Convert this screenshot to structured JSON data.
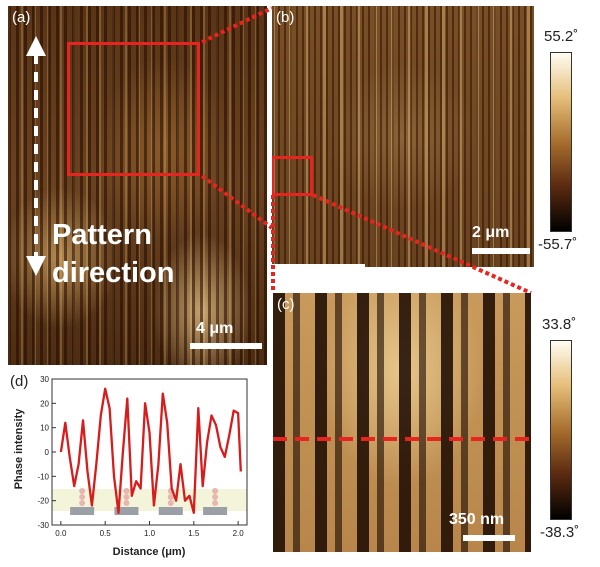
{
  "panels": {
    "a": {
      "label": "(a)",
      "annotation_line1": "Pattern",
      "annotation_line2": "direction",
      "scale_bar": "4 μm"
    },
    "b": {
      "label": "(b)",
      "scale_bar": "2 μm",
      "colorbar_max": "55.2˚",
      "colorbar_min": "-55.7˚"
    },
    "c": {
      "label": "(c)",
      "scale_bar": "350 nm",
      "colorbar_max": "33.8˚",
      "colorbar_min": "-38.3˚"
    },
    "d": {
      "label": "(d)"
    }
  },
  "colors": {
    "highlight": "#e8241f",
    "profile_line": "#d81c1c"
  },
  "chart_data": {
    "type": "line",
    "xlabel": "Distance (μm)",
    "ylabel": "Phase intensity",
    "xlim": [
      -0.1,
      2.1
    ],
    "ylim": [
      -30,
      30
    ],
    "x_ticks": [
      "0.0",
      "0.5",
      "1.0",
      "1.5",
      "2.0"
    ],
    "y_ticks": [
      "30",
      "20",
      "10",
      "0",
      "-10",
      "-20",
      "-30"
    ],
    "series": [
      {
        "x": [
          0.0,
          0.05,
          0.1,
          0.15,
          0.2,
          0.25,
          0.3,
          0.35,
          0.4,
          0.45,
          0.5,
          0.55,
          0.6,
          0.65,
          0.7,
          0.75,
          0.8,
          0.85,
          0.9,
          0.95,
          1.0,
          1.05,
          1.1,
          1.15,
          1.2,
          1.25,
          1.3,
          1.35,
          1.4,
          1.45,
          1.5,
          1.55,
          1.6,
          1.65,
          1.7,
          1.75,
          1.8,
          1.85,
          1.9,
          1.95,
          2.0,
          2.03
        ],
        "y": [
          0,
          12,
          -2,
          -14,
          -5,
          13,
          -8,
          -22,
          -5,
          15,
          26,
          18,
          -10,
          -25,
          0,
          22,
          -18,
          -12,
          -15,
          20,
          8,
          -22,
          -5,
          24,
          12,
          -15,
          -20,
          -5,
          -20,
          -18,
          -25,
          18,
          -14,
          4,
          15,
          11,
          2,
          -2,
          7,
          17,
          16,
          -8
        ]
      }
    ]
  }
}
